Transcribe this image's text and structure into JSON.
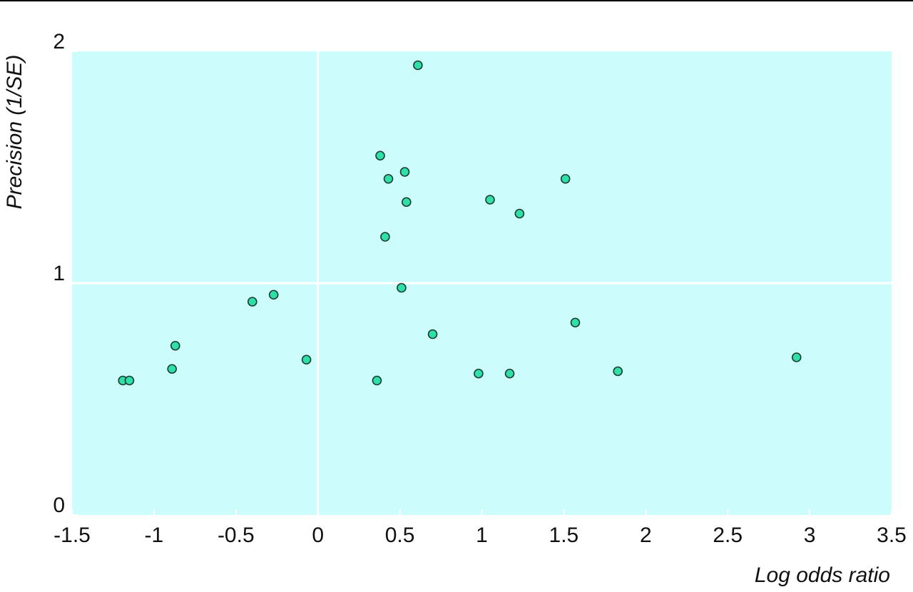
{
  "chart_data": {
    "type": "scatter",
    "x_label": "Log odds ratio",
    "y_label": "Precision (1/SE)",
    "x": [
      -1.19,
      -1.15,
      -0.89,
      -0.87,
      -0.4,
      -0.27,
      -0.07,
      0.36,
      0.38,
      0.43,
      0.41,
      0.53,
      0.54,
      0.51,
      0.61,
      0.7,
      0.98,
      1.05,
      1.17,
      1.23,
      1.51,
      1.57,
      1.83,
      2.92
    ],
    "values": [
      0.58,
      0.58,
      0.63,
      0.73,
      0.92,
      0.95,
      0.67,
      0.58,
      1.55,
      1.45,
      1.2,
      1.48,
      1.35,
      0.98,
      1.94,
      0.78,
      0.61,
      1.36,
      0.61,
      1.3,
      1.45,
      0.83,
      0.62,
      0.68
    ],
    "color": "#2ee0a6",
    "background": "#ccfcfc",
    "xlim": [
      -1.5,
      3.5
    ],
    "xticks": [
      -1.5,
      -1,
      -0.5,
      0,
      0.5,
      1,
      1.5,
      2,
      2.5,
      3,
      3.5
    ],
    "ylim": [
      0,
      2
    ],
    "yticks": [
      0,
      1,
      2
    ],
    "x_reference": 0,
    "y_reference": 1
  }
}
